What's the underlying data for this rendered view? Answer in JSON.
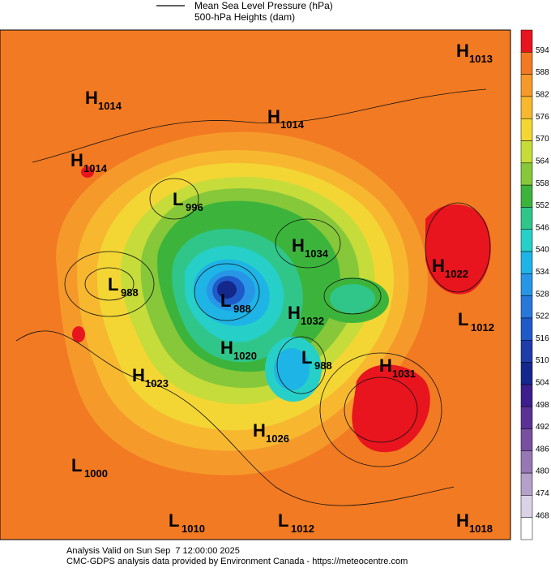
{
  "legend": {
    "line_label": "Mean Sea Level Pressure (hPa)",
    "fill_label": "500-hPa Heights (dam)"
  },
  "colorbar": {
    "levels": [
      {
        "label": 594,
        "color": "#e8141e"
      },
      {
        "label": 588,
        "color": "#f27a22"
      },
      {
        "label": 582,
        "color": "#f59a2a"
      },
      {
        "label": 576,
        "color": "#f7b830"
      },
      {
        "label": 570,
        "color": "#f3d634"
      },
      {
        "label": 564,
        "color": "#c6dc3a"
      },
      {
        "label": 558,
        "color": "#86c83a"
      },
      {
        "label": 552,
        "color": "#3cb43c"
      },
      {
        "label": 546,
        "color": "#30c68a"
      },
      {
        "label": 540,
        "color": "#26d0c8"
      },
      {
        "label": 534,
        "color": "#1eb4e6"
      },
      {
        "label": 528,
        "color": "#2896e6"
      },
      {
        "label": 522,
        "color": "#2878dc"
      },
      {
        "label": 516,
        "color": "#1e5ac8"
      },
      {
        "label": 510,
        "color": "#1e3caa"
      },
      {
        "label": 504,
        "color": "#14288c"
      },
      {
        "label": 498,
        "color": "#3c1e8c"
      },
      {
        "label": 492,
        "color": "#5a3296"
      },
      {
        "label": 486,
        "color": "#7850a0"
      },
      {
        "label": 480,
        "color": "#9678b4"
      },
      {
        "label": 474,
        "color": "#b4a0c8"
      },
      {
        "label": 468,
        "color": "#dcd2e6"
      }
    ]
  },
  "systems": [
    {
      "letter": "H",
      "value": "1013"
    },
    {
      "letter": "H",
      "value": "1014"
    },
    {
      "letter": "H",
      "value": "1014"
    },
    {
      "letter": "H",
      "value": "1014"
    },
    {
      "letter": "L",
      "value": "996"
    },
    {
      "letter": "H",
      "value": "1034"
    },
    {
      "letter": "H",
      "value": "1022"
    },
    {
      "letter": "L",
      "value": "988"
    },
    {
      "letter": "L",
      "value": "988"
    },
    {
      "letter": "H",
      "value": "1032"
    },
    {
      "letter": "L",
      "value": "1012"
    },
    {
      "letter": "H",
      "value": "1020"
    },
    {
      "letter": "L",
      "value": "988"
    },
    {
      "letter": "H",
      "value": "1031"
    },
    {
      "letter": "H",
      "value": "1023"
    },
    {
      "letter": "H",
      "value": "1026"
    },
    {
      "letter": "L",
      "value": "1000"
    },
    {
      "letter": "L",
      "value": "1010"
    },
    {
      "letter": "L",
      "value": "1012"
    },
    {
      "letter": "H",
      "value": "1018"
    }
  ],
  "footer": {
    "line1": "Analysis Valid on Sun Sep  7 12:00:00 2025",
    "line2": "CMC-GDPS analysis data provided by Environment Canada - https://meteocentre.com"
  }
}
